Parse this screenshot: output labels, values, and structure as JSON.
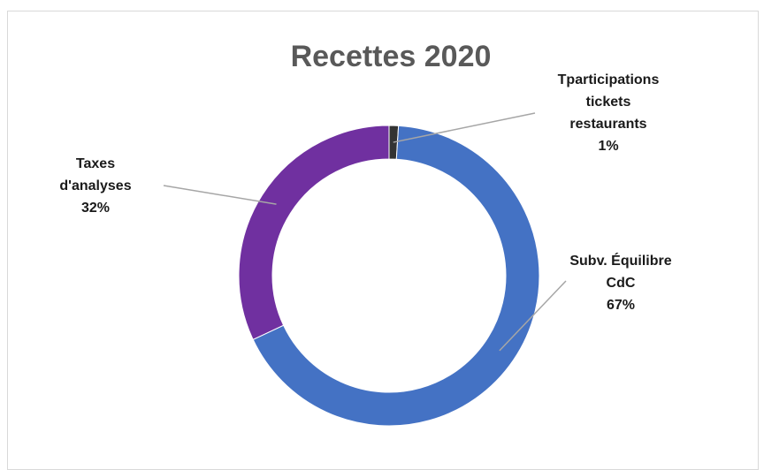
{
  "chart_data": {
    "type": "pie",
    "title": "Recettes 2020",
    "slices": [
      {
        "name_lines": [
          "Tparticipations",
          "tickets",
          "restaurants"
        ],
        "percent_label": "1%",
        "value": 1,
        "color": "#333333"
      },
      {
        "name_lines": [
          "Subv. Équilibre",
          "CdC"
        ],
        "percent_label": "67%",
        "value": 67,
        "color": "#4472C4"
      },
      {
        "name_lines": [
          "Taxes",
          "d'analyses"
        ],
        "percent_label": "32%",
        "value": 32,
        "color": "#7030A0"
      }
    ],
    "legend": "none",
    "donut": true
  }
}
